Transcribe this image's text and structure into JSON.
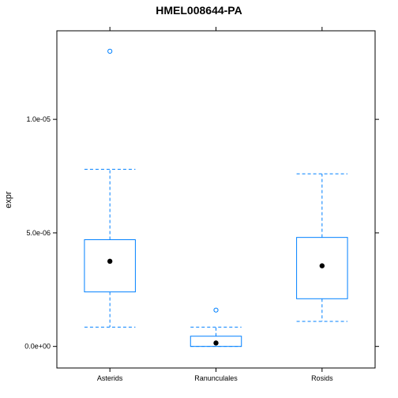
{
  "chart_data": {
    "type": "boxplot",
    "title": "HMEL008644-PA",
    "xlabel": "",
    "ylabel": "expr",
    "ylim": [
      -9.5e-07,
      1.39e-05
    ],
    "yticks": [
      0,
      5e-06,
      1e-05
    ],
    "ytick_labels": [
      "0.0e+00",
      "5.0e-06",
      "1.0e-05"
    ],
    "categories": [
      "Asterids",
      "Ranunculales",
      "Rosids"
    ],
    "boxes": [
      {
        "category": "Asterids",
        "whisker_low": 8.5e-07,
        "q1": 2.4e-06,
        "median": 3.75e-06,
        "q3": 4.7e-06,
        "whisker_high": 7.8e-06,
        "outliers": [
          1.3e-05
        ]
      },
      {
        "category": "Ranunculales",
        "whisker_low": 0.0,
        "q1": 0.0,
        "median": 1.5e-07,
        "q3": 4.5e-07,
        "whisker_high": 8.5e-07,
        "outliers": [
          1.6e-06
        ]
      },
      {
        "category": "Rosids",
        "whisker_low": 1.1e-06,
        "q1": 2.1e-06,
        "median": 3.55e-06,
        "q3": 4.8e-06,
        "whisker_high": 7.6e-06,
        "outliers": []
      }
    ],
    "grid": false,
    "colors": {
      "box": "#0080ff",
      "whisker": "#0080ff",
      "median": "#000000",
      "outlier": "#0080ff"
    }
  }
}
